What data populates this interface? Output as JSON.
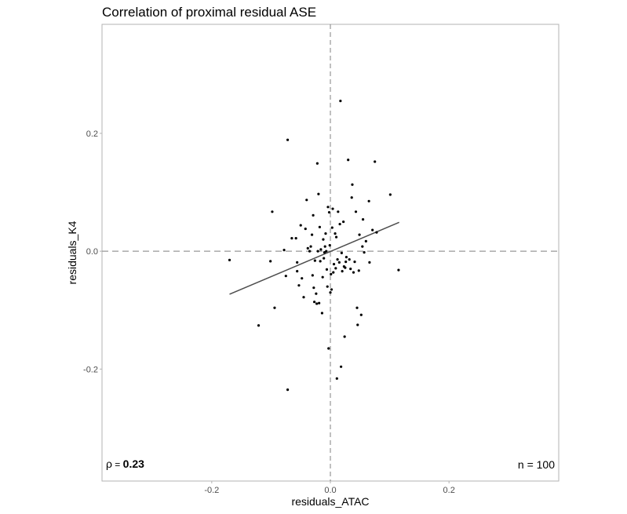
{
  "chart_data": {
    "type": "scatter",
    "title": "Correlation of proximal residual ASE",
    "xlabel": "residuals_ATAC",
    "ylabel": "residuals_K4",
    "xlim": [
      -0.385,
      0.385
    ],
    "ylim": [
      -0.39,
      0.385
    ],
    "xticks": [
      -0.2,
      0.0,
      0.2
    ],
    "xtick_labels": [
      "-0.2",
      "0.0",
      "0.2"
    ],
    "yticks": [
      -0.2,
      0.0,
      0.2
    ],
    "ytick_labels": [
      "-0.2",
      "0.0",
      "0.2"
    ],
    "grid": false,
    "reference_lines": {
      "x": 0,
      "y": 0,
      "style": "dashed"
    },
    "annotations": {
      "rho_symbol": "ρ",
      "rho_equals": " = ",
      "rho_value": "0.23",
      "n_label": "n = 100"
    },
    "fit_line": {
      "x": [
        -0.17,
        0.116
      ],
      "y": [
        -0.073,
        0.049
      ]
    },
    "points": [
      [
        -0.17,
        -0.015
      ],
      [
        -0.121,
        -0.126
      ],
      [
        -0.101,
        -0.017
      ],
      [
        -0.098,
        0.067
      ],
      [
        -0.094,
        -0.096
      ],
      [
        -0.078,
        0.002
      ],
      [
        -0.075,
        -0.042
      ],
      [
        -0.072,
        0.189
      ],
      [
        -0.072,
        -0.235
      ],
      [
        -0.065,
        0.022
      ],
      [
        -0.058,
        0.022
      ],
      [
        -0.056,
        -0.034
      ],
      [
        -0.056,
        -0.019
      ],
      [
        -0.053,
        -0.058
      ],
      [
        -0.05,
        0.044
      ],
      [
        -0.048,
        -0.046
      ],
      [
        -0.045,
        -0.078
      ],
      [
        -0.042,
        0.038
      ],
      [
        -0.04,
        0.087
      ],
      [
        -0.038,
        0.005
      ],
      [
        -0.035,
        0.0
      ],
      [
        -0.033,
        0.008
      ],
      [
        -0.031,
        0.028
      ],
      [
        -0.03,
        -0.041
      ],
      [
        -0.029,
        0.061
      ],
      [
        -0.028,
        -0.062
      ],
      [
        -0.027,
        -0.086
      ],
      [
        -0.026,
        -0.016
      ],
      [
        -0.024,
        -0.072
      ],
      [
        -0.023,
        -0.089
      ],
      [
        -0.022,
        0.149
      ],
      [
        -0.021,
        0.0
      ],
      [
        -0.02,
        0.097
      ],
      [
        -0.019,
        -0.088
      ],
      [
        -0.018,
        0.041
      ],
      [
        -0.017,
        -0.017
      ],
      [
        -0.016,
        0.003
      ],
      [
        -0.014,
        -0.105
      ],
      [
        -0.013,
        -0.044
      ],
      [
        -0.012,
        0.02
      ],
      [
        -0.011,
        -0.012
      ],
      [
        -0.01,
        -0.002
      ],
      [
        -0.009,
        0.008
      ],
      [
        -0.008,
        0.03
      ],
      [
        -0.007,
        0.0
      ],
      [
        -0.006,
        -0.031
      ],
      [
        -0.005,
        -0.06
      ],
      [
        -0.004,
        0.075
      ],
      [
        -0.003,
        -0.165
      ],
      [
        -0.002,
        0.066
      ],
      [
        -0.001,
        0.01
      ],
      [
        0.0,
        -0.07
      ],
      [
        0.001,
        -0.039
      ],
      [
        0.002,
        -0.065
      ],
      [
        0.003,
        0.04
      ],
      [
        0.004,
        0.072
      ],
      [
        0.005,
        -0.036
      ],
      [
        0.006,
        -0.022
      ],
      [
        0.008,
        0.03
      ],
      [
        0.009,
        -0.029
      ],
      [
        0.01,
        0.024
      ],
      [
        0.011,
        -0.216
      ],
      [
        0.012,
        -0.014
      ],
      [
        0.013,
        0.067
      ],
      [
        0.015,
        -0.019
      ],
      [
        0.016,
        0.046
      ],
      [
        0.017,
        0.255
      ],
      [
        0.018,
        -0.196
      ],
      [
        0.019,
        -0.003
      ],
      [
        0.02,
        -0.034
      ],
      [
        0.022,
        0.05
      ],
      [
        0.023,
        -0.026
      ],
      [
        0.024,
        -0.145
      ],
      [
        0.025,
        -0.028
      ],
      [
        0.026,
        -0.018
      ],
      [
        0.027,
        -0.01
      ],
      [
        0.03,
        0.155
      ],
      [
        0.032,
        -0.014
      ],
      [
        0.034,
        -0.03
      ],
      [
        0.036,
        0.091
      ],
      [
        0.037,
        0.113
      ],
      [
        0.039,
        -0.036
      ],
      [
        0.041,
        -0.018
      ],
      [
        0.043,
        0.067
      ],
      [
        0.045,
        -0.096
      ],
      [
        0.046,
        -0.125
      ],
      [
        0.048,
        -0.033
      ],
      [
        0.049,
        0.028
      ],
      [
        0.052,
        -0.108
      ],
      [
        0.054,
        0.008
      ],
      [
        0.055,
        0.054
      ],
      [
        0.057,
        -0.002
      ],
      [
        0.06,
        0.017
      ],
      [
        0.065,
        0.085
      ],
      [
        0.066,
        -0.019
      ],
      [
        0.071,
        0.036
      ],
      [
        0.075,
        0.152
      ],
      [
        0.078,
        0.032
      ],
      [
        0.101,
        0.096
      ],
      [
        0.115,
        -0.032
      ]
    ]
  }
}
